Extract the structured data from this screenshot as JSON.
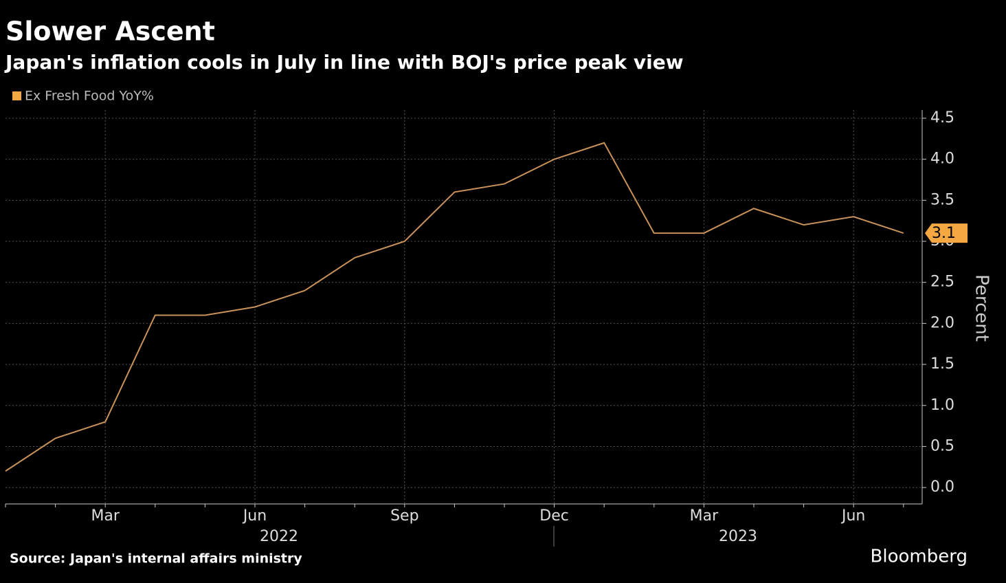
{
  "chart_data": {
    "type": "line",
    "title": "Slower Ascent",
    "subtitle": "Japan's inflation cools in July in line with BOJ's price peak view",
    "categories": [
      null,
      null,
      "Mar",
      null,
      null,
      "Jun",
      null,
      null,
      "Sep",
      null,
      null,
      "Dec",
      null,
      null,
      "Mar",
      null,
      null,
      "Jun",
      null
    ],
    "years": [
      "2022",
      "2023"
    ],
    "series": [
      {
        "name": "Ex Fresh Food YoY%",
        "color": "#f5a742",
        "values": [
          0.2,
          0.6,
          0.8,
          2.1,
          2.1,
          2.2,
          2.4,
          2.8,
          3.0,
          3.6,
          3.7,
          4.0,
          4.2,
          3.1,
          3.1,
          3.4,
          3.2,
          3.3,
          3.1
        ]
      }
    ],
    "ylim": [
      -0.2,
      4.6
    ],
    "yticks": [
      {
        "value": 0,
        "label": "0.0"
      },
      0.5,
      {
        "value": 1,
        "label": "1.0"
      },
      1.5,
      {
        "value": 2,
        "label": "2.0"
      },
      2.5,
      {
        "value": 3,
        "label": "3.0"
      },
      3.5,
      {
        "value": 4,
        "label": "4.0"
      },
      4.5
    ],
    "y_label": "Percent",
    "grid": true,
    "source": "Source: Japan's internal affairs ministry",
    "brand": "Bloomberg"
  }
}
